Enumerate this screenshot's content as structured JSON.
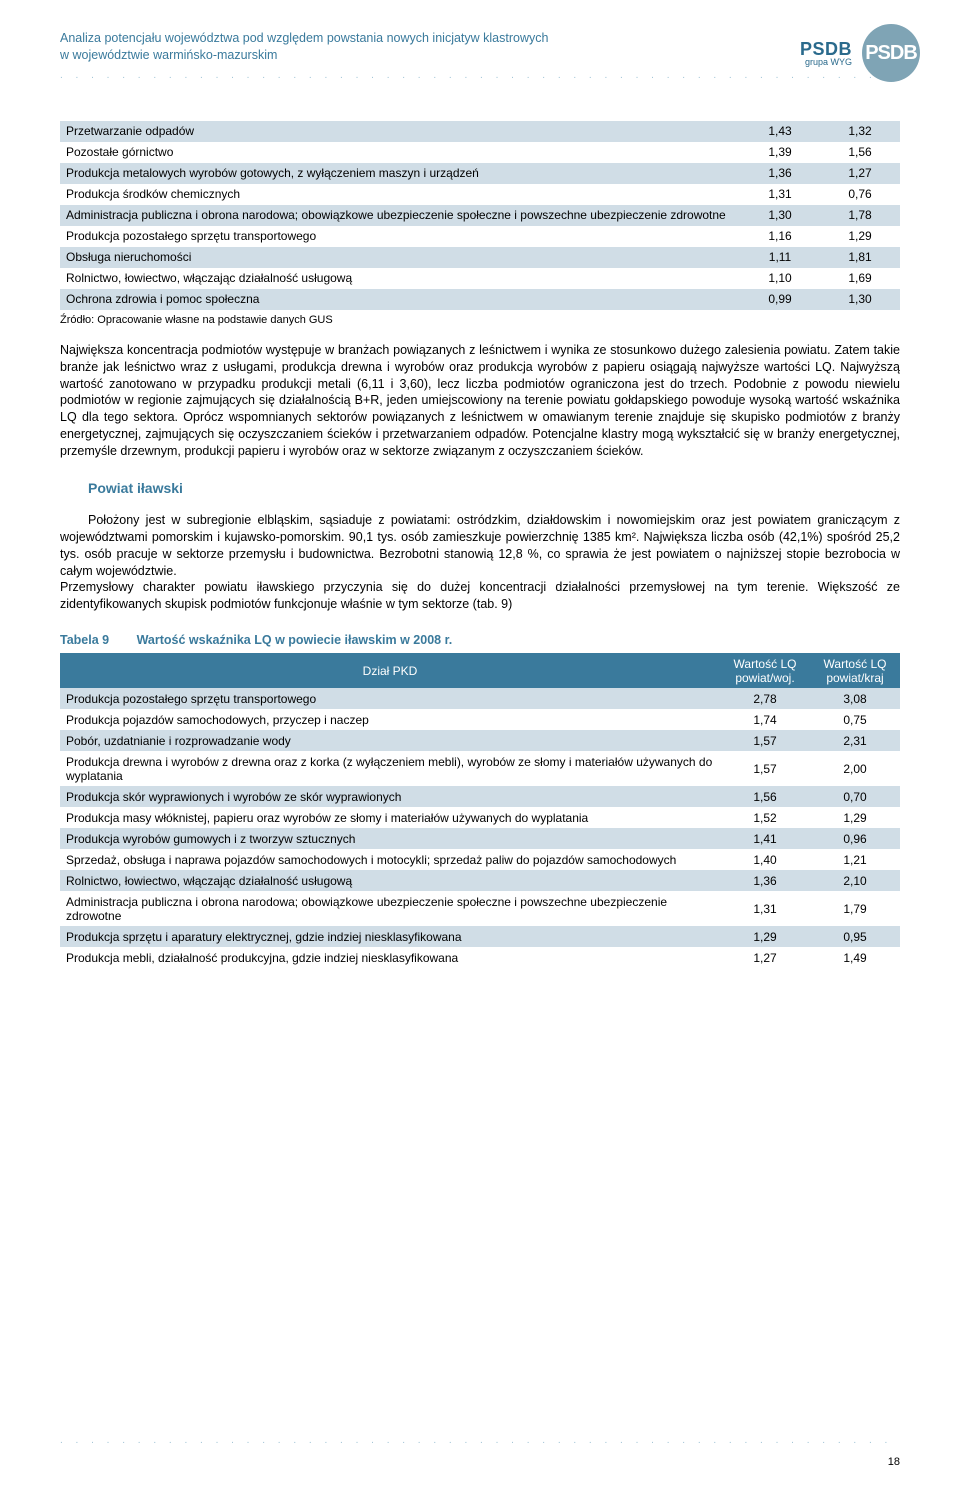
{
  "header": {
    "title_line1": "Analiza potencjału województwa pod względem powstania nowych inicjatyw klastrowych",
    "title_line2": "w województwie warmińsko-mazurskim",
    "brand_big": "PSDB",
    "brand_small": "grupa WYG",
    "logo_text": "PSDB"
  },
  "table1": {
    "rows": [
      {
        "label": "Przetwarzanie odpadów",
        "v1": "1,43",
        "v2": "1,32"
      },
      {
        "label": "Pozostałe górnictwo",
        "v1": "1,39",
        "v2": "1,56"
      },
      {
        "label": "Produkcja metalowych wyrobów gotowych, z wyłączeniem maszyn i urządzeń",
        "v1": "1,36",
        "v2": "1,27"
      },
      {
        "label": "Produkcja środków chemicznych",
        "v1": "1,31",
        "v2": "0,76"
      },
      {
        "label": "Administracja publiczna i obrona narodowa; obowiązkowe ubezpieczenie społeczne i powszechne ubezpieczenie zdrowotne",
        "v1": "1,30",
        "v2": "1,78"
      },
      {
        "label": "Produkcja pozostałego sprzętu transportowego",
        "v1": "1,16",
        "v2": "1,29"
      },
      {
        "label": "Obsługa nieruchomości",
        "v1": "1,11",
        "v2": "1,81"
      },
      {
        "label": "Rolnictwo, łowiectwo, włączając działalność usługową",
        "v1": "1,10",
        "v2": "1,69"
      },
      {
        "label": "Ochrona zdrowia i pomoc społeczna",
        "v1": "0,99",
        "v2": "1,30"
      }
    ],
    "source": "Źródło: Opracowanie własne na podstawie danych GUS"
  },
  "paragraph1": "Największa koncentracja podmiotów występuje w branżach powiązanych z leśnictwem i wynika ze stosunkowo dużego zalesienia powiatu. Zatem takie branże jak leśnictwo wraz z usługami, produkcja drewna i wyrobów oraz produkcja wyrobów z papieru osiągają najwyższe wartości LQ. Najwyższą wartość zanotowano w przypadku produkcji metali (6,11 i 3,60), lecz liczba podmiotów ograniczona jest do trzech. Podobnie z powodu niewielu podmiotów w regionie zajmujących się działalnością B+R, jeden umiejscowiony na terenie powiatu gołdapskiego powoduje wysoką wartość wskaźnika LQ dla tego sektora. Oprócz wspomnianych sektorów powiązanych z leśnictwem w omawianym terenie znajduje się skupisko podmiotów z branży energetycznej, zajmujących się oczyszczaniem ścieków i przetwarzaniem odpadów. Potencjalne klastry mogą wykształcić się w branży energetycznej, przemyśle drzewnym, produkcji papieru i wyrobów oraz w sektorze związanym z oczyszczaniem ścieków.",
  "section_title": "Powiat iławski",
  "paragraph2a": "Położony jest w subregionie elbląskim, sąsiaduje z powiatami: ostródzkim, działdowskim i nowomiejskim oraz jest powiatem graniczącym z województwami pomorskim i kujawsko-pomorskim. 90,1 tys. osób zamieszkuje powierzchnię 1385 km². Największa liczba osób (42,1%) spośród 25,2 tys. osób pracuje w sektorze przemysłu i budownictwa. Bezrobotni stanowią 12,8 %, co sprawia że jest powiatem o najniższej stopie bezrobocia w całym województwie.",
  "paragraph2b": "Przemysłowy charakter powiatu iławskiego przyczynia się do dużej koncentracji działalności przemysłowej na tym terenie. Większość ze zidentyfikowanych skupisk podmiotów funkcjonuje właśnie w tym sektorze (tab. 9)",
  "table2": {
    "caption_label": "Tabela 9",
    "caption_text": "Wartość wskaźnika LQ w powiecie iławskim w 2008 r.",
    "header_main": "Dział PKD",
    "header_v1": "Wartość LQ powiat/woj.",
    "header_v2": "Wartość LQ powiat/kraj",
    "rows": [
      {
        "label": "Produkcja pozostałego sprzętu transportowego",
        "v1": "2,78",
        "v2": "3,08"
      },
      {
        "label": "Produkcja pojazdów samochodowych, przyczep i naczep",
        "v1": "1,74",
        "v2": "0,75"
      },
      {
        "label": "Pobór, uzdatnianie i rozprowadzanie wody",
        "v1": "1,57",
        "v2": "2,31"
      },
      {
        "label": "Produkcja drewna i wyrobów z drewna oraz z korka (z wyłączeniem mebli), wyrobów ze słomy i materiałów używanych do wyplatania",
        "v1": "1,57",
        "v2": "2,00"
      },
      {
        "label": "Produkcja skór wyprawionych i wyrobów ze skór wyprawionych",
        "v1": "1,56",
        "v2": "0,70"
      },
      {
        "label": "Produkcja masy włóknistej, papieru oraz wyrobów ze słomy i materiałów używanych do wyplatania",
        "v1": "1,52",
        "v2": "1,29"
      },
      {
        "label": "Produkcja wyrobów gumowych i z tworzyw sztucznych",
        "v1": "1,41",
        "v2": "0,96"
      },
      {
        "label": "Sprzedaż, obsługa i naprawa pojazdów samochodowych i motocykli; sprzedaż paliw do pojazdów samochodowych",
        "v1": "1,40",
        "v2": "1,21"
      },
      {
        "label": "Rolnictwo, łowiectwo, włączając działalność usługową",
        "v1": "1,36",
        "v2": "2,10"
      },
      {
        "label": "Administracja publiczna i obrona narodowa; obowiązkowe ubezpieczenie społeczne i powszechne ubezpieczenie zdrowotne",
        "v1": "1,31",
        "v2": "1,79"
      },
      {
        "label": "Produkcja sprzętu i aparatury elektrycznej, gdzie indziej niesklasyfikowana",
        "v1": "1,29",
        "v2": "0,95"
      },
      {
        "label": "Produkcja mebli, działalność produkcyjna, gdzie indziej niesklasyfikowana",
        "v1": "1,27",
        "v2": "1,49"
      }
    ]
  },
  "page_number": "18"
}
